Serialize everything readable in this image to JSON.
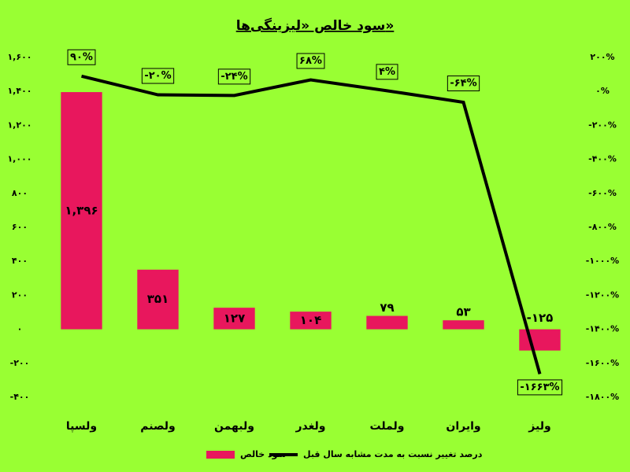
{
  "chart_data": {
    "type": "bar",
    "title": "سود خالص «لیزینگی‌ها»",
    "categories": [
      "ولسپا",
      "ولصنم",
      "ولبهمن",
      "ولغدر",
      "ولملت",
      "وایران",
      "ولیز"
    ],
    "series": [
      {
        "name": "سود خالص",
        "type": "bar",
        "color": "#e8175d",
        "values": [
          1396,
          351,
          127,
          104,
          79,
          53,
          -125
        ],
        "value_labels": [
          "۱,۳۹۶",
          "۳۵۱",
          "۱۲۷",
          "۱۰۴",
          "۷۹",
          "۵۳",
          "-۱۲۵"
        ]
      },
      {
        "name": "درصد تغییر نسبت به مدت مشابه سال قبل",
        "type": "line",
        "axis": "y2",
        "color": "#000000",
        "values": [
          90,
          -20,
          -24,
          68,
          4,
          -64,
          -1663
        ],
        "value_labels": [
          "۹۰%",
          "-۲۰%",
          "-۲۴%",
          "۶۸%",
          "۴%",
          "-۶۴%",
          "-۱۶۶۳%"
        ]
      }
    ],
    "ylim": [
      -400,
      1600
    ],
    "yticks": [
      {
        "value": -400,
        "label": "-۴۰۰"
      },
      {
        "value": -200,
        "label": "-۲۰۰"
      },
      {
        "value": 0,
        "label": "۰"
      },
      {
        "value": 200,
        "label": "۲۰۰"
      },
      {
        "value": 400,
        "label": "۴۰۰"
      },
      {
        "value": 600,
        "label": "۶۰۰"
      },
      {
        "value": 800,
        "label": "۸۰۰"
      },
      {
        "value": 1000,
        "label": "۱,۰۰۰"
      },
      {
        "value": 1200,
        "label": "۱,۲۰۰"
      },
      {
        "value": 1400,
        "label": "۱,۴۰۰"
      },
      {
        "value": 1600,
        "label": "۱,۶۰۰"
      }
    ],
    "y2lim": [
      -1800,
      200
    ],
    "y2ticks": [
      {
        "value": -1800,
        "label": "-۱۸۰۰%"
      },
      {
        "value": -1600,
        "label": "-۱۶۰۰%"
      },
      {
        "value": -1400,
        "label": "-۱۴۰۰%"
      },
      {
        "value": -1200,
        "label": "-۱۲۰۰%"
      },
      {
        "value": -1000,
        "label": "-۱۰۰۰%"
      },
      {
        "value": -800,
        "label": "-۸۰۰%"
      },
      {
        "value": -600,
        "label": "-۶۰۰%"
      },
      {
        "value": -400,
        "label": "-۴۰۰%"
      },
      {
        "value": -200,
        "label": "-۲۰۰%"
      },
      {
        "value": 0,
        "label": "۰%"
      },
      {
        "value": 200,
        "label": "۲۰۰%"
      }
    ],
    "grid": false
  }
}
